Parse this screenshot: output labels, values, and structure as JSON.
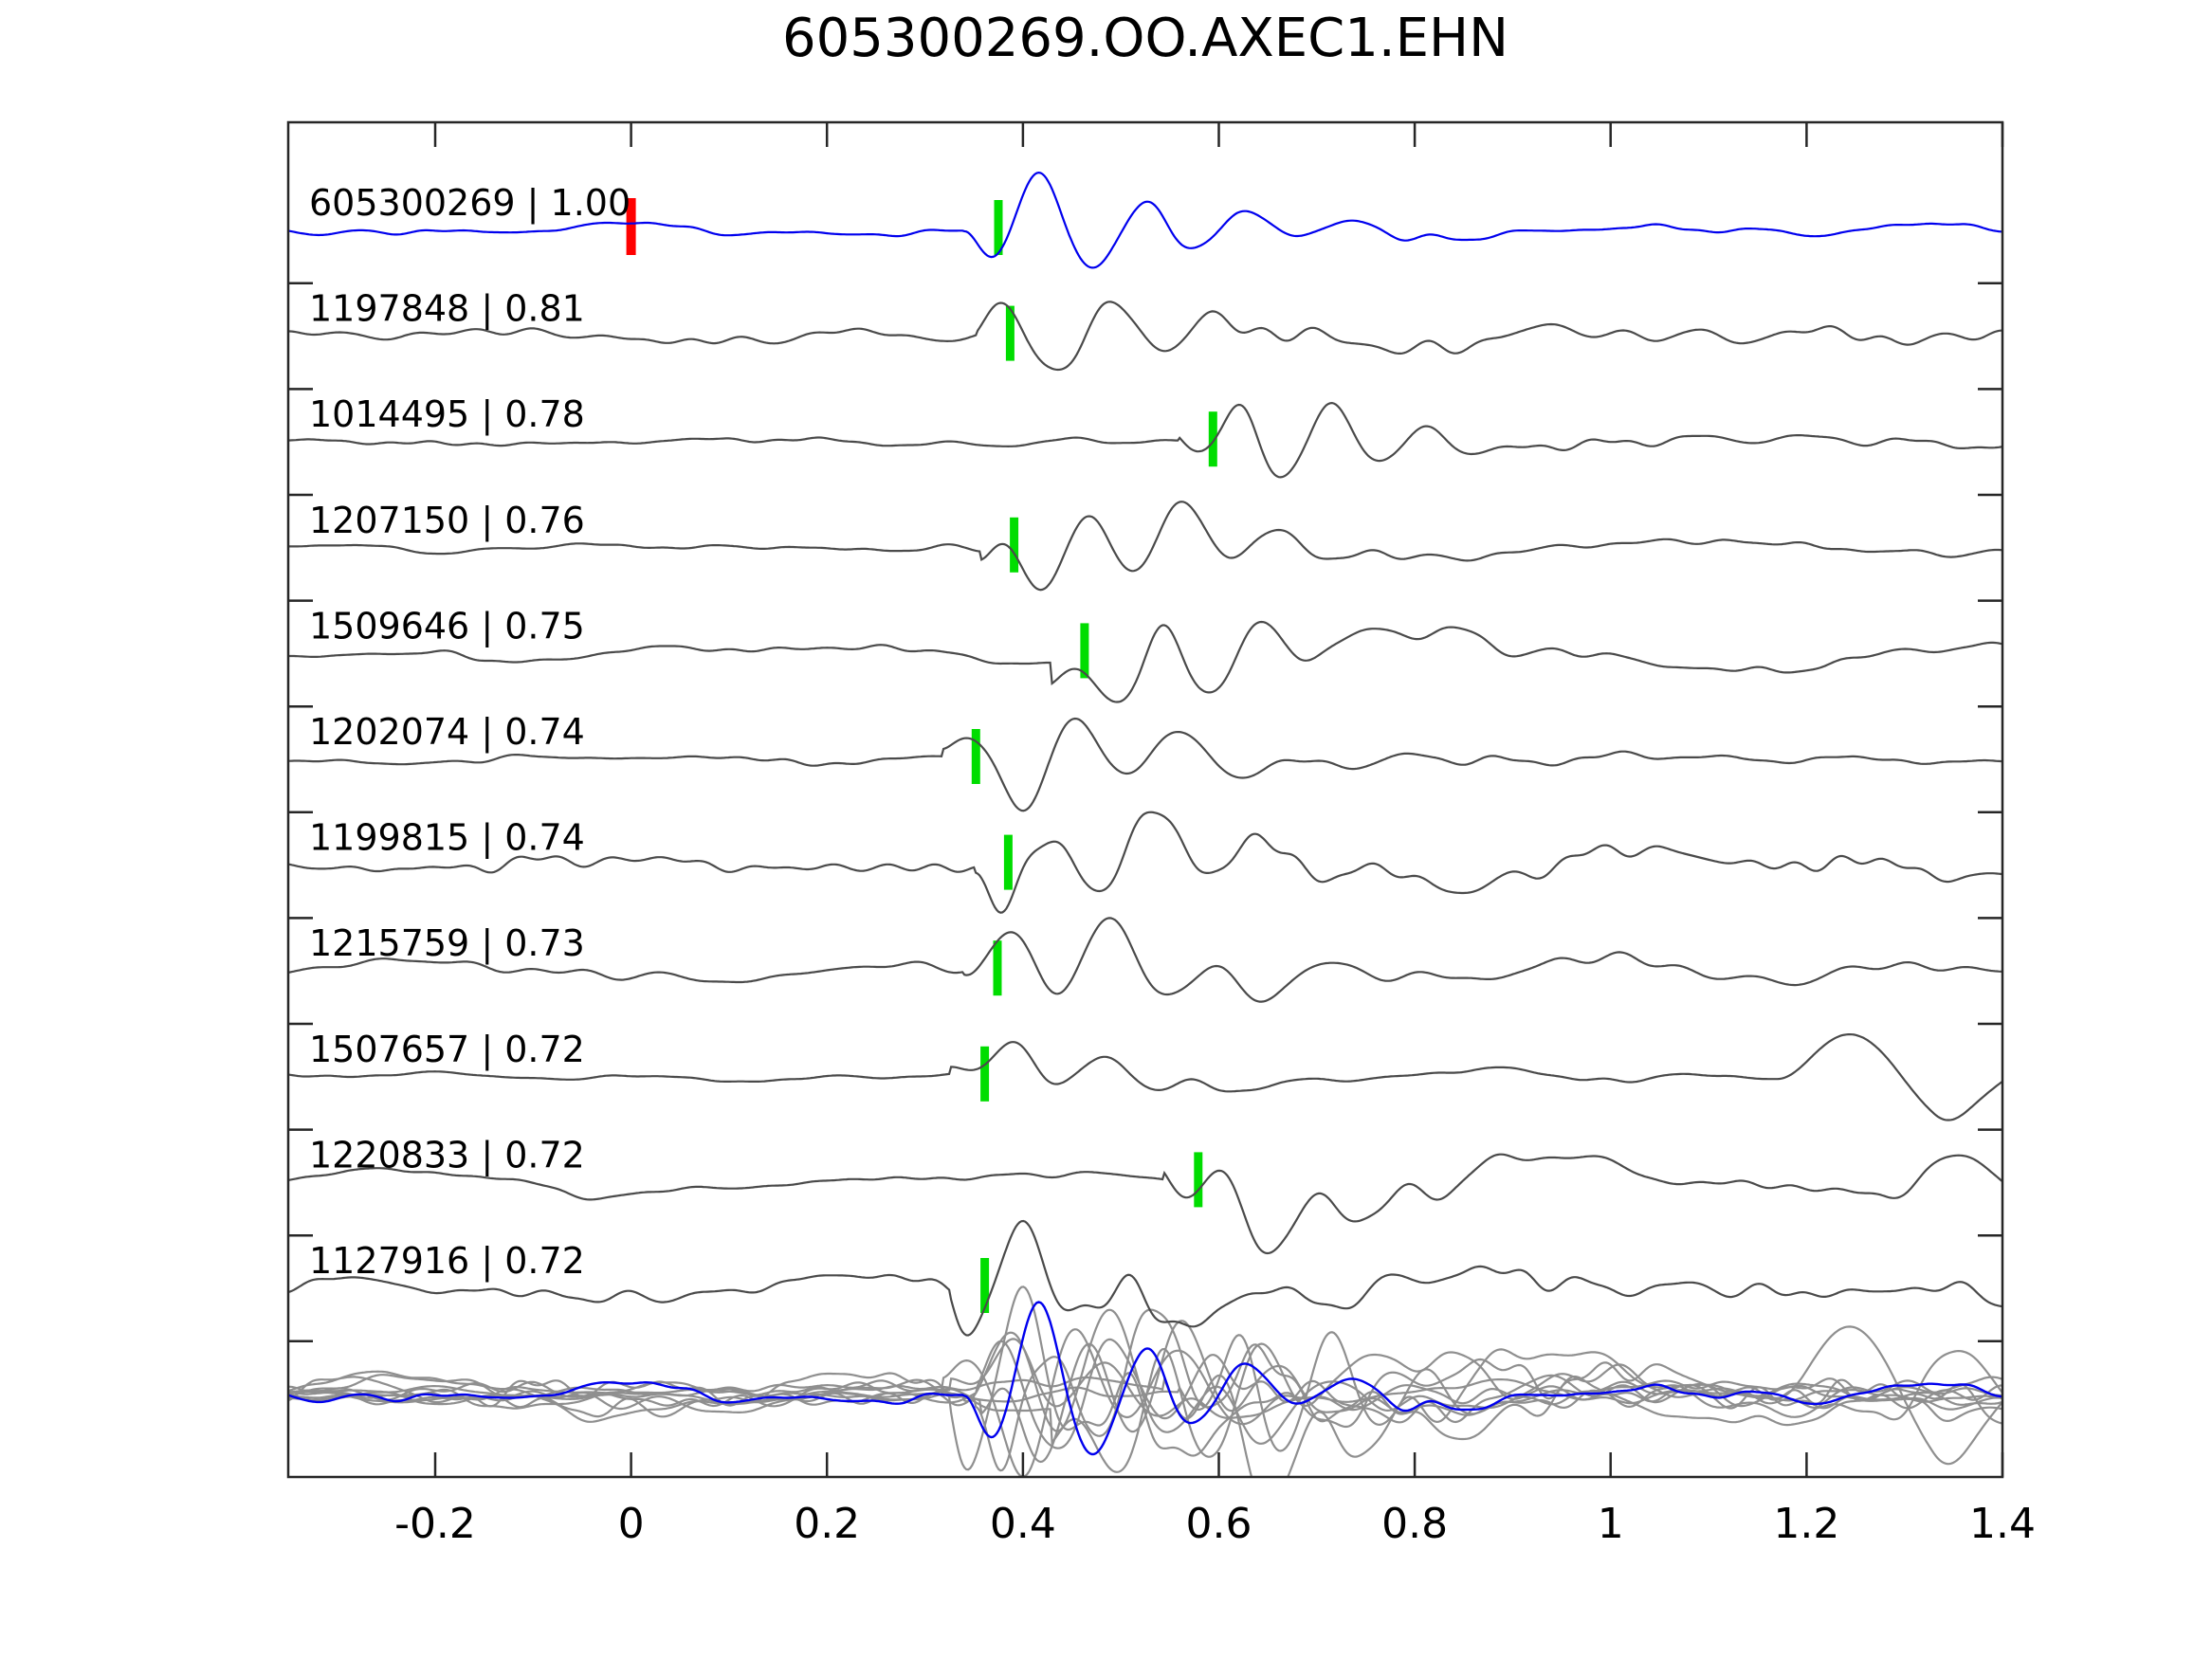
{
  "figure": {
    "title": "605300269.OO.AXEC1.EHN"
  },
  "chart_data": {
    "type": "line",
    "title": "605300269.OO.AXEC1.EHN",
    "subtitle": "",
    "xlabel": "",
    "ylabel": "",
    "xlim": [
      -0.35,
      1.4
    ],
    "grid": false,
    "legend": null,
    "axes_style": {
      "box": true,
      "tick_direction": "in",
      "ticks_top": true,
      "ticks_right": true
    },
    "x_ticks": [
      {
        "value": -0.2,
        "label": "-0.2"
      },
      {
        "value": 0,
        "label": "0"
      },
      {
        "value": 0.2,
        "label": "0.2"
      },
      {
        "value": 0.4,
        "label": "0.4"
      },
      {
        "value": 0.6,
        "label": "0.6"
      },
      {
        "value": 0.8,
        "label": "0.8"
      },
      {
        "value": 1,
        "label": "1"
      },
      {
        "value": 1.2,
        "label": "1.2"
      },
      {
        "value": 1.4,
        "label": "1.4"
      }
    ],
    "colors": {
      "target_blue": "#0000ee",
      "trace_gray": "#4a4a4a",
      "overlay_gray": "#8f8f8f",
      "pick_green": "#00dd00",
      "ref_red": "#ff0000",
      "spine": "#262626",
      "text": "#000000"
    },
    "traces": [
      {
        "id": "605300269",
        "similarity": "1.00",
        "label": "605300269 | 1.00",
        "is_target": true,
        "pick_time": 0.375,
        "ref_time": 0.0,
        "noise_amp": 8,
        "signal_amp": 46,
        "seed": 3,
        "down_first": true
      },
      {
        "id": "1197848",
        "similarity": "0.81",
        "label": "1197848 | 0.81",
        "is_target": false,
        "pick_time": 0.387,
        "noise_amp": 10,
        "signal_amp": 44,
        "seed": 7
      },
      {
        "id": "1014495",
        "similarity": "0.78",
        "label": "1014495 | 0.78",
        "is_target": false,
        "pick_time": 0.594,
        "noise_amp": 6,
        "signal_amp": 42,
        "seed": 12
      },
      {
        "id": "1207150",
        "similarity": "0.76",
        "label": "1207150 | 0.76",
        "is_target": false,
        "pick_time": 0.391,
        "noise_amp": 10,
        "signal_amp": 42,
        "seed": 21
      },
      {
        "id": "1509646",
        "similarity": "0.75",
        "label": "1509646 | 0.75",
        "is_target": false,
        "pick_time": 0.463,
        "noise_amp": 13,
        "signal_amp": 40,
        "seed": 33
      },
      {
        "id": "1202074",
        "similarity": "0.74",
        "label": "1202074 | 0.74",
        "is_target": false,
        "pick_time": 0.352,
        "noise_amp": 7,
        "signal_amp": 42,
        "seed": 41
      },
      {
        "id": "1199815",
        "similarity": "0.74",
        "label": "1199815 | 0.74",
        "is_target": false,
        "pick_time": 0.385,
        "noise_amp": 16,
        "signal_amp": 38,
        "seed": 52
      },
      {
        "id": "1215759",
        "similarity": "0.73",
        "label": "1215759 | 0.73",
        "is_target": false,
        "pick_time": 0.374,
        "noise_amp": 13,
        "signal_amp": 40,
        "seed": 60
      },
      {
        "id": "1507657",
        "similarity": "0.72",
        "label": "1507657 | 0.72",
        "is_target": false,
        "pick_time": 0.361,
        "noise_amp": 7,
        "signal_amp": 16,
        "seed": 71,
        "late_events": [
          {
            "time": 1.17,
            "amp": 52,
            "freq": 4.0
          },
          {
            "time": 1.33,
            "amp": 30,
            "freq": 5.0
          }
        ]
      },
      {
        "id": "1220833",
        "similarity": "0.72",
        "label": "1220833 | 0.72",
        "is_target": false,
        "pick_time": 0.579,
        "noise_amp": 18,
        "signal_amp": 34,
        "seed": 85,
        "late_events": [
          {
            "time": 1.28,
            "amp": 26,
            "freq": 4.0
          }
        ]
      },
      {
        "id": "1127916",
        "similarity": "0.72",
        "label": "1127916 | 0.72",
        "is_target": false,
        "pick_time": 0.361,
        "noise_amp": 15,
        "signal_amp": 36,
        "seed": 93
      }
    ],
    "overlay_row": {
      "description": "all traces superimposed, target in blue over gray matches",
      "includes_all_traces": true
    }
  }
}
